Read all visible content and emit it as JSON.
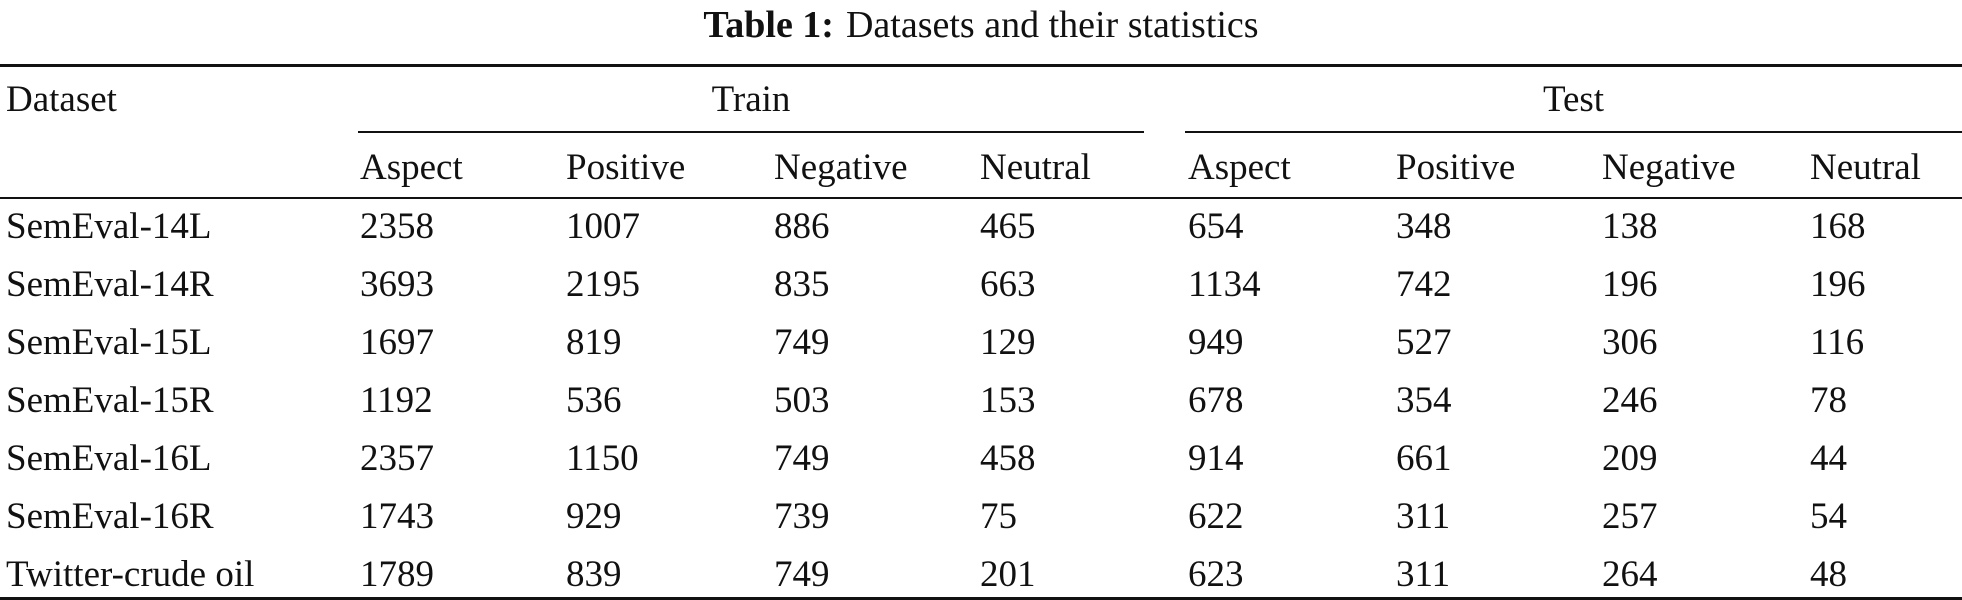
{
  "caption": {
    "label": "Table 1:",
    "title": "Datasets and their statistics"
  },
  "table": {
    "dataset_header": "Dataset",
    "groups": [
      "Train",
      "Test"
    ],
    "subheaders": [
      "Aspect",
      "Positive",
      "Negative",
      "Neutral",
      "Aspect",
      "Positive",
      "Negative",
      "Neutral"
    ],
    "rows": [
      {
        "dataset": "SemEval-14L",
        "values": [
          "2358",
          "1007",
          "886",
          "465",
          "654",
          "348",
          "138",
          "168"
        ]
      },
      {
        "dataset": "SemEval-14R",
        "values": [
          "3693",
          "2195",
          "835",
          "663",
          "1134",
          "742",
          "196",
          "196"
        ]
      },
      {
        "dataset": "SemEval-15L",
        "values": [
          "1697",
          "819",
          "749",
          "129",
          "949",
          "527",
          "306",
          "116"
        ]
      },
      {
        "dataset": "SemEval-15R",
        "values": [
          "1192",
          "536",
          "503",
          "153",
          "678",
          "354",
          "246",
          "78"
        ]
      },
      {
        "dataset": "SemEval-16L",
        "values": [
          "2357",
          "1150",
          "749",
          "458",
          "914",
          "661",
          "209",
          "44"
        ]
      },
      {
        "dataset": "SemEval-16R",
        "values": [
          "1743",
          "929",
          "739",
          "75",
          "622",
          "311",
          "257",
          "54"
        ]
      },
      {
        "dataset": "Twitter-crude oil",
        "values": [
          "1789",
          "839",
          "749",
          "201",
          "623",
          "311",
          "264",
          "48"
        ]
      }
    ]
  }
}
